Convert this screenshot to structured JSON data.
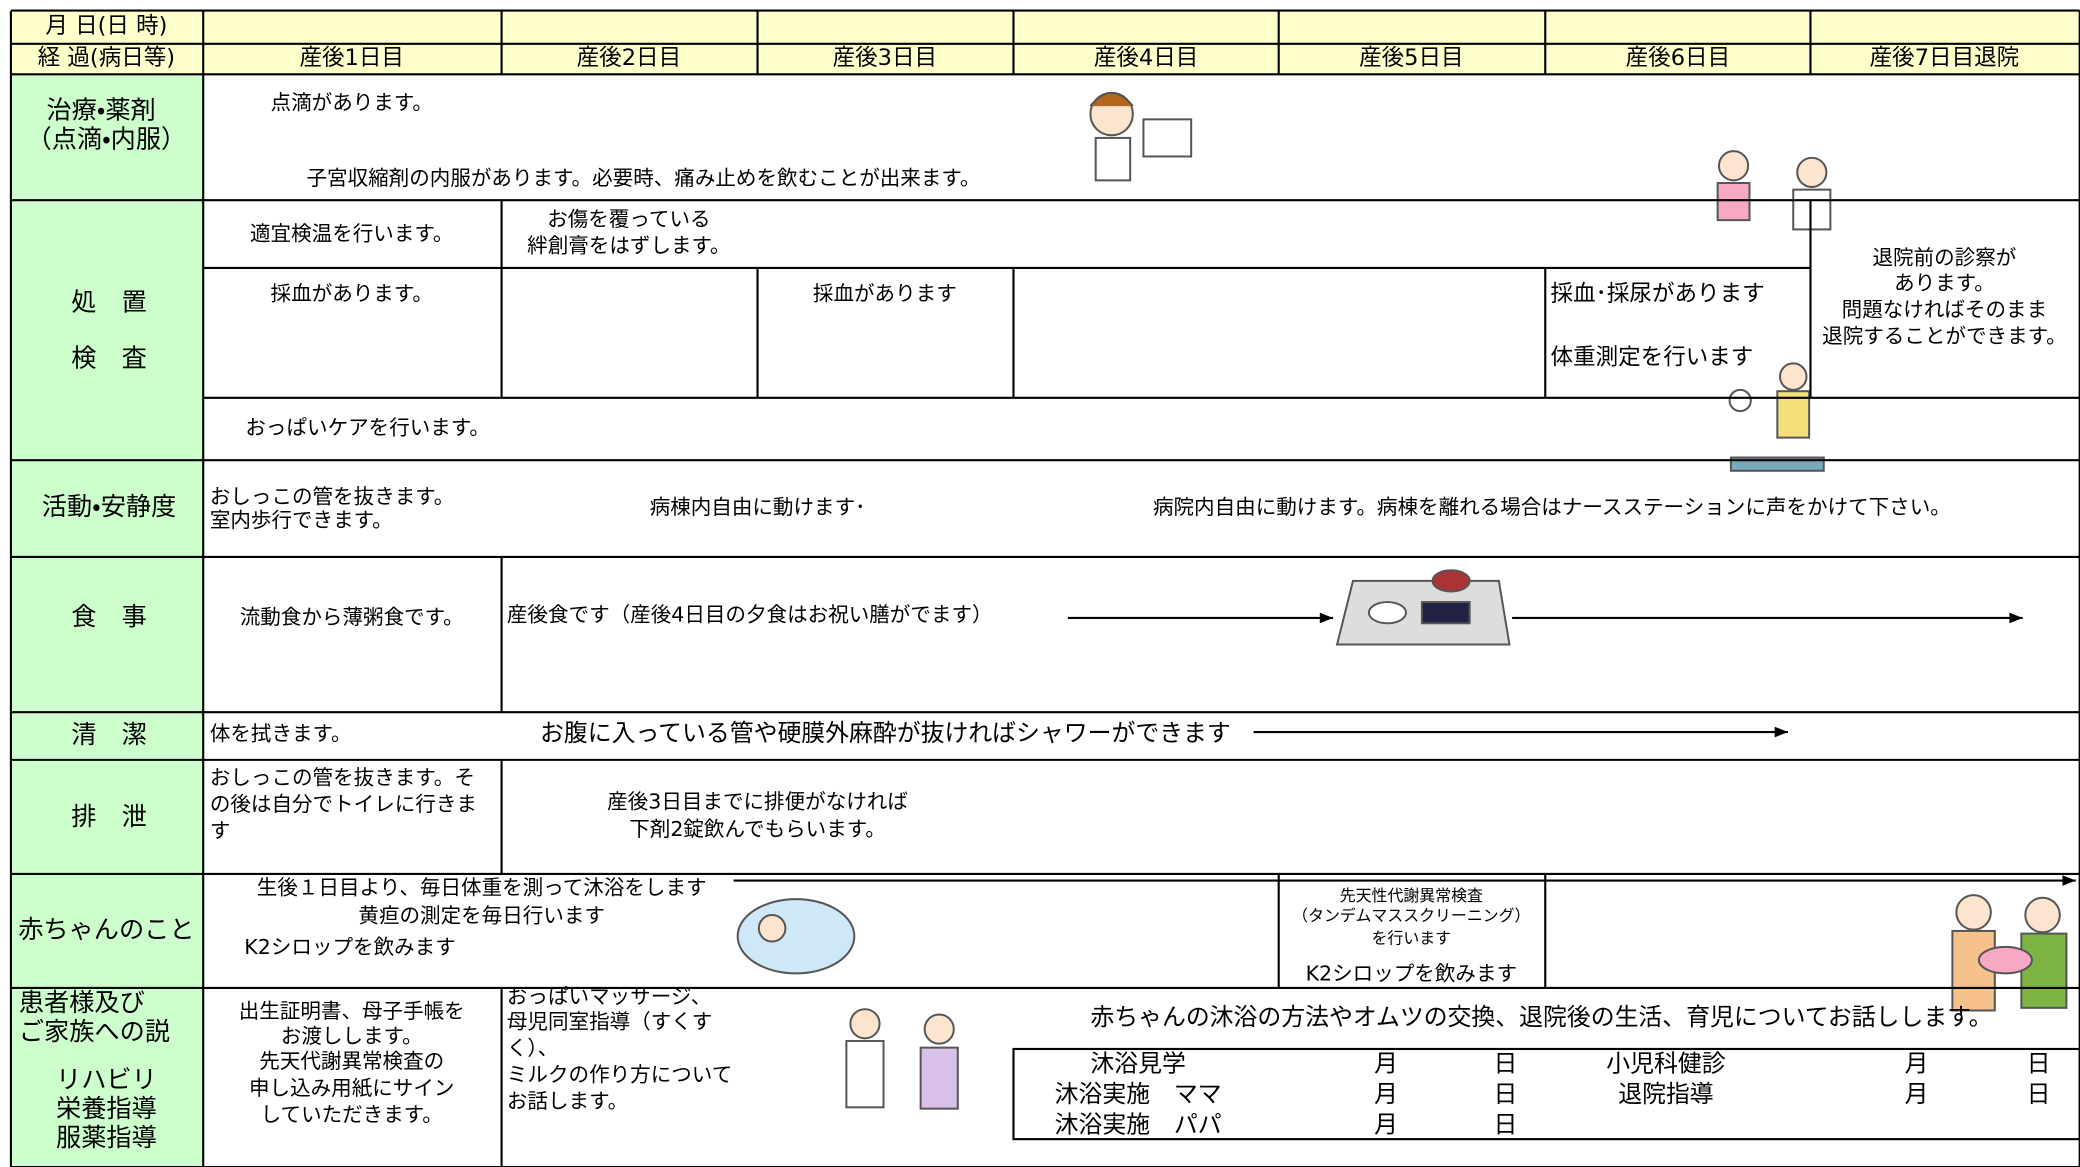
{
  "header": {
    "date_label": "月 日(日 時)",
    "progress_label": "経 過(病日等)",
    "days": [
      "産後1日目",
      "産後2日目",
      "産後3日目",
      "産後4日目",
      "産後5日目",
      "産後6日目",
      "産後7日目退院"
    ]
  },
  "treatment": {
    "label": [
      "治療・薬剤",
      "（点滴・内服）"
    ],
    "drip": "点滴があります。",
    "oral": "子宮収縮剤の内服があります。必要時、痛み止めを飲むことが出来ます。"
  },
  "procedure": {
    "label": [
      "処　置",
      "検　査"
    ],
    "temperature": "適宜検温を行います。",
    "bandage": [
      "お傷を覆っている",
      "絆創膏をはずします。"
    ],
    "discharge_exam": [
      "退院前の診察が",
      "あります。",
      "問題なければそのまま",
      "退院することができます。"
    ],
    "blood_day1": "採血があります。",
    "blood_day3": "採血があります",
    "blood_urine_day6": "採血･採尿があります",
    "weight_day6": "体重測定を行います",
    "breast_care": "おっぱいケアを行います。"
  },
  "activity": {
    "label": "活動・安静度",
    "day1": [
      "おしっこの管を抜きます。",
      "室内歩行できます。"
    ],
    "day2": "病棟内自由に動けます･",
    "day4": "病院内自由に動けます。病棟を離れる場合はナースステーションに声をかけて下さい。"
  },
  "meals": {
    "label": "食　事",
    "day1": "流動食から薄粥食です。",
    "day2": "産後食です（産後4日目の夕食はお祝い膳がでます）"
  },
  "hygiene": {
    "label": "清　潔",
    "day1": "体を拭きます。",
    "day2": "お腹に入っている管や硬膜外麻酔が抜ければシャワーができます"
  },
  "excretion": {
    "label": "排　泄",
    "day1": [
      "おしっこの管を抜きます。そ",
      "の後は自分でトイレに行きま",
      "す"
    ],
    "day2": [
      "産後3日目までに排便がなければ",
      "下剤2錠飲んでもらいます。"
    ]
  },
  "baby": {
    "label": "赤ちゃんのこと",
    "daily": [
      "生後１日目より、毎日体重を測って沐浴をします",
      "黄疸の測定を毎日行います"
    ],
    "k2_day1": "K2シロップを飲みます",
    "screening": [
      "先天性代謝異常検査",
      "（タンデムマススクリーニング）",
      "を行います"
    ],
    "k2_day5": "K2シロップを飲みます"
  },
  "family": {
    "label": [
      "患者様及び",
      "ご家族への説"
    ],
    "sub_label": [
      "リハビリ",
      "栄養指導",
      "服薬指導"
    ],
    "day1": [
      "出生証明書、母子手帳を",
      "お渡しします。",
      "先天代謝異常検査の",
      "申し込み用紙にサイン",
      "していただきます。"
    ],
    "day2": [
      "おっぱいマッサージ、",
      "母児同室指導（すくす",
      "く）、",
      "ミルクの作り方について",
      "お話します。"
    ],
    "talk": "赤ちゃんの沐浴の方法やオムツの交換、退院後の生活、育児についてお話しします。",
    "schedule": {
      "left": [
        [
          "沐浴見学",
          "月",
          "日"
        ],
        [
          "沐浴実施　ママ",
          "月",
          "日"
        ],
        [
          "沐浴実施　パパ",
          "月",
          "日"
        ]
      ],
      "right": [
        [
          "小児科健診",
          "月",
          "日"
        ],
        [
          "退院指導",
          "月",
          "日"
        ]
      ]
    }
  }
}
